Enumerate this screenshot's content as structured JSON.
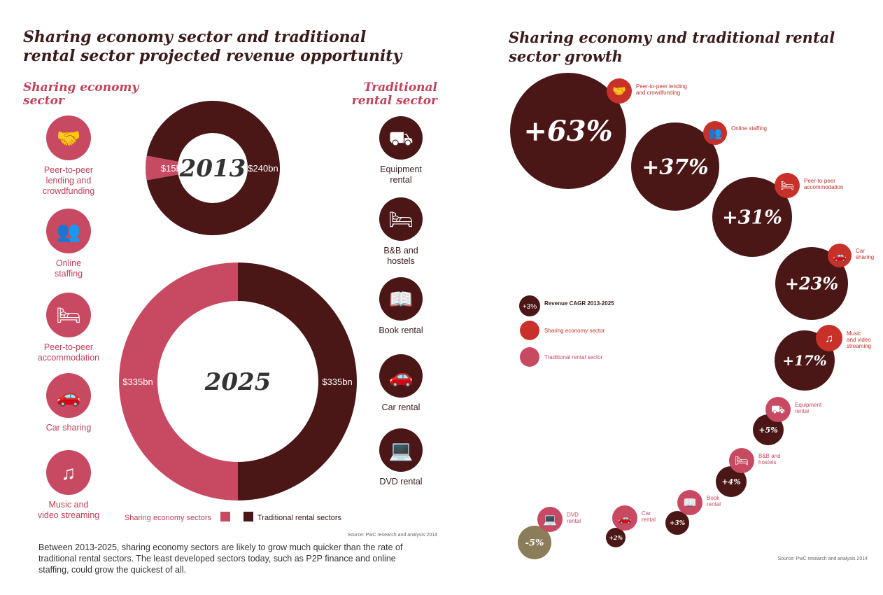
{
  "left": {
    "title_lines": [
      "Sharing economy sector and traditional",
      "rental sector projected revenue opportunity"
    ],
    "sharing_heading": [
      "Sharing economy",
      "sector"
    ],
    "traditional_heading": [
      "Traditional",
      "rental sector"
    ],
    "sharing_sectors": [
      {
        "icon": "handshake-icon",
        "label": [
          "Peer-to-peer",
          "lending and",
          "crowdfunding"
        ]
      },
      {
        "icon": "people-icon",
        "label": [
          "Online",
          "staffing"
        ]
      },
      {
        "icon": "bed-icon",
        "label": [
          "Peer-to-peer",
          "accommodation"
        ]
      },
      {
        "icon": "car-icon",
        "label": [
          "Car sharing"
        ]
      },
      {
        "icon": "music-note-icon",
        "label": [
          "Music and",
          "video streaming"
        ]
      }
    ],
    "traditional_sectors": [
      {
        "icon": "forklift-icon",
        "label": [
          "Equipment",
          "rental"
        ]
      },
      {
        "icon": "bed-icon",
        "label": [
          "B&B and",
          "hostels"
        ]
      },
      {
        "icon": "book-icon",
        "label": [
          "Book rental"
        ]
      },
      {
        "icon": "car-icon",
        "label": [
          "Car rental"
        ]
      },
      {
        "icon": "laptop-icon",
        "label": [
          "DVD rental"
        ]
      }
    ],
    "legend": {
      "sharing": "Sharing economy sectors",
      "traditional": "Traditional rental sectors"
    },
    "source": "Source: PwC research and analysis 2014",
    "paragraph": [
      "Between 2013-2025, sharing economy sectors are likely to grow much quicker than the rate of",
      "traditional rental sectors. The least developed sectors today, such as P2P finance and online",
      "staffing, could grow the quickest of all."
    ]
  },
  "chart_data": [
    {
      "type": "pie",
      "title": "2013",
      "donut": true,
      "slices": [
        {
          "name": "Sharing economy sectors",
          "value": 15,
          "label": "$15bn"
        },
        {
          "name": "Traditional rental sectors",
          "value": 240,
          "label": "$240bn"
        }
      ]
    },
    {
      "type": "pie",
      "title": "2025",
      "donut": true,
      "slices": [
        {
          "name": "Sharing economy sectors",
          "value": 335,
          "label": "$335bn"
        },
        {
          "name": "Traditional rental sectors",
          "value": 335,
          "label": "$335bn"
        }
      ]
    },
    {
      "type": "scatter",
      "subtype": "bubble",
      "title": "Sharing economy and traditional rental sector growth",
      "legend": [
        "Revenue CAGR 2013-2025",
        "Sharing economy sector",
        "Traditional rental sector"
      ],
      "legend_sample": "+3%",
      "points": [
        {
          "sector": [
            "Peer-to-peer lending",
            "and crowdfunding"
          ],
          "group": "sharing",
          "value": 63,
          "label": "+63%"
        },
        {
          "sector": [
            "Online staffing"
          ],
          "group": "sharing",
          "value": 37,
          "label": "+37%"
        },
        {
          "sector": [
            "Peer-to-peer",
            "accommodation"
          ],
          "group": "sharing",
          "value": 31,
          "label": "+31%"
        },
        {
          "sector": [
            "Car",
            "sharing"
          ],
          "group": "sharing",
          "value": 23,
          "label": "+23%"
        },
        {
          "sector": [
            "Music",
            "and video",
            "streaming"
          ],
          "group": "sharing",
          "value": 17,
          "label": "+17%"
        },
        {
          "sector": [
            "Equipment",
            "rental"
          ],
          "group": "traditional",
          "value": 5,
          "label": "+5%"
        },
        {
          "sector": [
            "B&B and",
            "hostels"
          ],
          "group": "traditional",
          "value": 4,
          "label": "+4%"
        },
        {
          "sector": [
            "Book",
            "rental"
          ],
          "group": "traditional",
          "value": 3,
          "label": "+3%"
        },
        {
          "sector": [
            "Car",
            "rental"
          ],
          "group": "traditional",
          "value": 2,
          "label": "+2%"
        },
        {
          "sector": [
            "DVD",
            "rental"
          ],
          "group": "traditional",
          "value": -5,
          "label": "-5%"
        }
      ],
      "source": "Source: PwC research and analysis 2014"
    }
  ],
  "colors": {
    "dark": "#4a1616",
    "pink": "#c84a62",
    "red": "#c8302a",
    "olive": "#8b7d5a"
  }
}
